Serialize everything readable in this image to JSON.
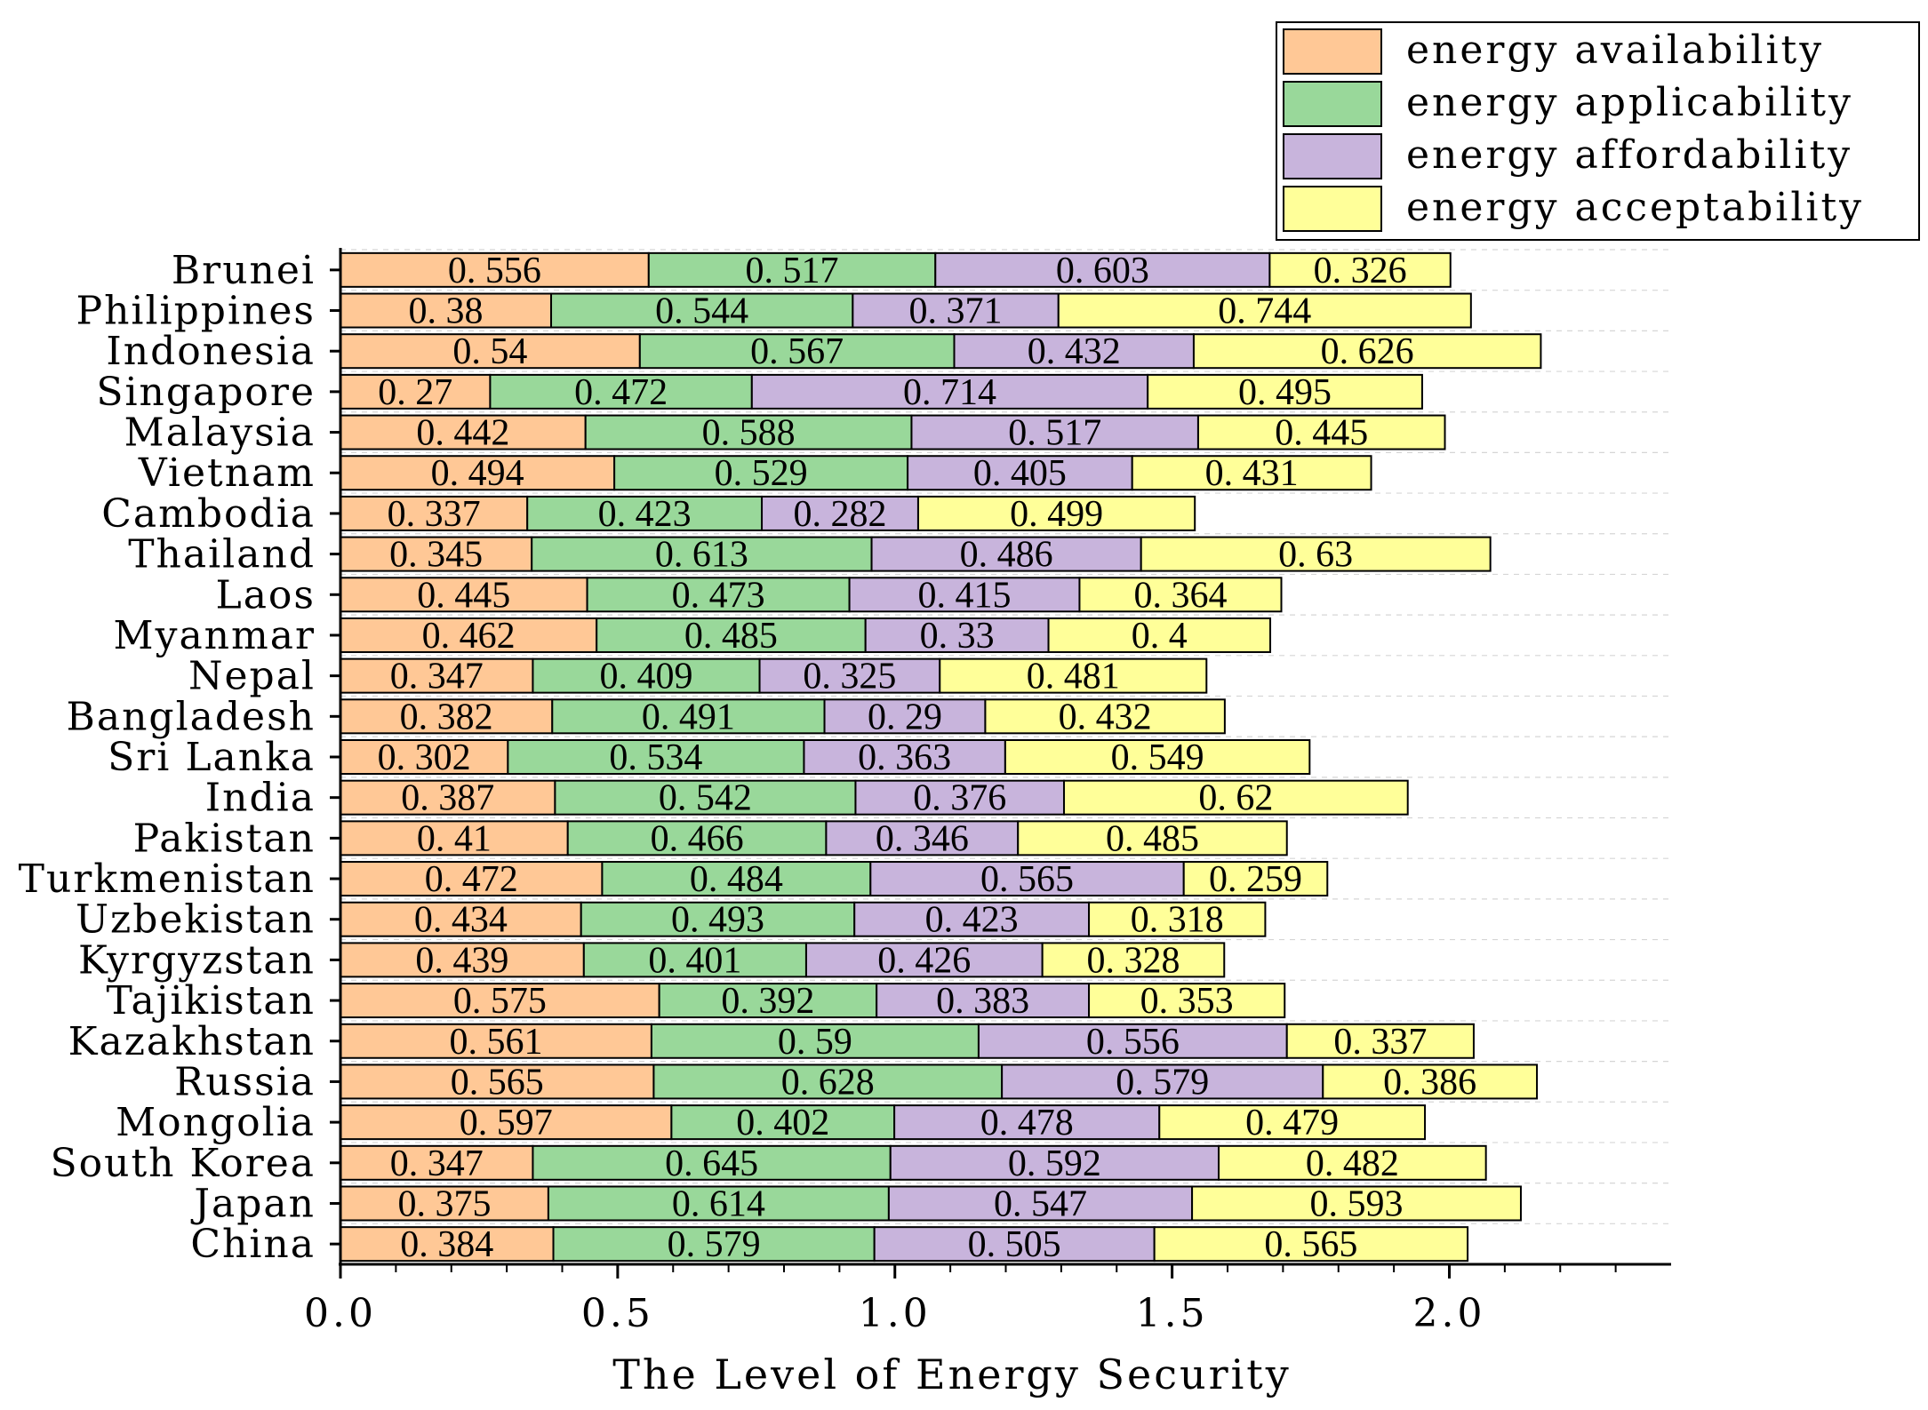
{
  "chart_data": {
    "type": "bar",
    "orientation": "horizontal",
    "stacked": true,
    "categories": [
      "China",
      "Japan",
      "South Korea",
      "Mongolia",
      "Russia",
      "Kazakhstan",
      "Tajikistan",
      "Kyrgyzstan",
      "Uzbekistan",
      "Turkmenistan",
      "Pakistan",
      "India",
      "Sri Lanka",
      "Bangladesh",
      "Nepal",
      "Myanmar",
      "Laos",
      "Thailand",
      "Cambodia",
      "Vietnam",
      "Malaysia",
      "Singapore",
      "Indonesia",
      "Philippines",
      "Brunei"
    ],
    "series": [
      {
        "name": "energy availability",
        "color": "#FFC896",
        "values": [
          0.384,
          0.375,
          0.347,
          0.597,
          0.565,
          0.561,
          0.575,
          0.439,
          0.434,
          0.472,
          0.41,
          0.387,
          0.302,
          0.382,
          0.347,
          0.462,
          0.445,
          0.345,
          0.337,
          0.494,
          0.442,
          0.27,
          0.54,
          0.38,
          0.556
        ]
      },
      {
        "name": "energy applicability",
        "color": "#99D89A",
        "values": [
          0.579,
          0.614,
          0.645,
          0.402,
          0.628,
          0.59,
          0.392,
          0.401,
          0.493,
          0.484,
          0.466,
          0.542,
          0.534,
          0.491,
          0.409,
          0.485,
          0.473,
          0.613,
          0.423,
          0.529,
          0.588,
          0.472,
          0.567,
          0.544,
          0.517
        ]
      },
      {
        "name": "energy affordability",
        "color": "#C8B4DC",
        "values": [
          0.505,
          0.547,
          0.592,
          0.478,
          0.579,
          0.556,
          0.383,
          0.426,
          0.423,
          0.565,
          0.346,
          0.376,
          0.363,
          0.29,
          0.325,
          0.33,
          0.415,
          0.486,
          0.282,
          0.405,
          0.517,
          0.714,
          0.432,
          0.371,
          0.603
        ]
      },
      {
        "name": "energy acceptability",
        "color": "#FFFF99",
        "values": [
          0.565,
          0.593,
          0.482,
          0.479,
          0.386,
          0.337,
          0.353,
          0.328,
          0.318,
          0.259,
          0.485,
          0.62,
          0.549,
          0.432,
          0.481,
          0.4,
          0.364,
          0.63,
          0.499,
          0.431,
          0.445,
          0.495,
          0.626,
          0.744,
          0.326
        ]
      }
    ],
    "xlabel": "The Level of Energy Security",
    "ylabel": "",
    "xlim": [
      0,
      2.4
    ],
    "xticks": [
      0.0,
      0.5,
      1.0,
      1.5,
      2.0
    ],
    "xtick_labels": [
      "0.0",
      "0.5",
      "1.0",
      "1.5",
      "2.0"
    ],
    "grid": "dashed horizontal lines",
    "legend_position": "top-right",
    "data_labels": true
  }
}
